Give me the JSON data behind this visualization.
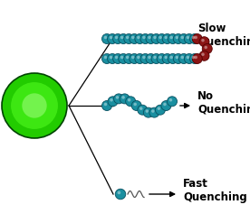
{
  "background_color": "#ffffff",
  "qd_color_outer": "#22cc00",
  "qd_color_mid": "#44ff22",
  "qd_color_inner": "#88ff66",
  "qd_edge_color": "#004400",
  "teal_color": "#1a8fa0",
  "teal_edge_color": "#0a5060",
  "dark_red_color": "#8b1515",
  "dark_red_edge": "#550000",
  "label_fast": "Fast\nQuenching",
  "label_no": "No\nQuenching",
  "label_slow": "Slow\nQuenching",
  "label_fontsize": 8.5,
  "label_fontweight": "bold"
}
